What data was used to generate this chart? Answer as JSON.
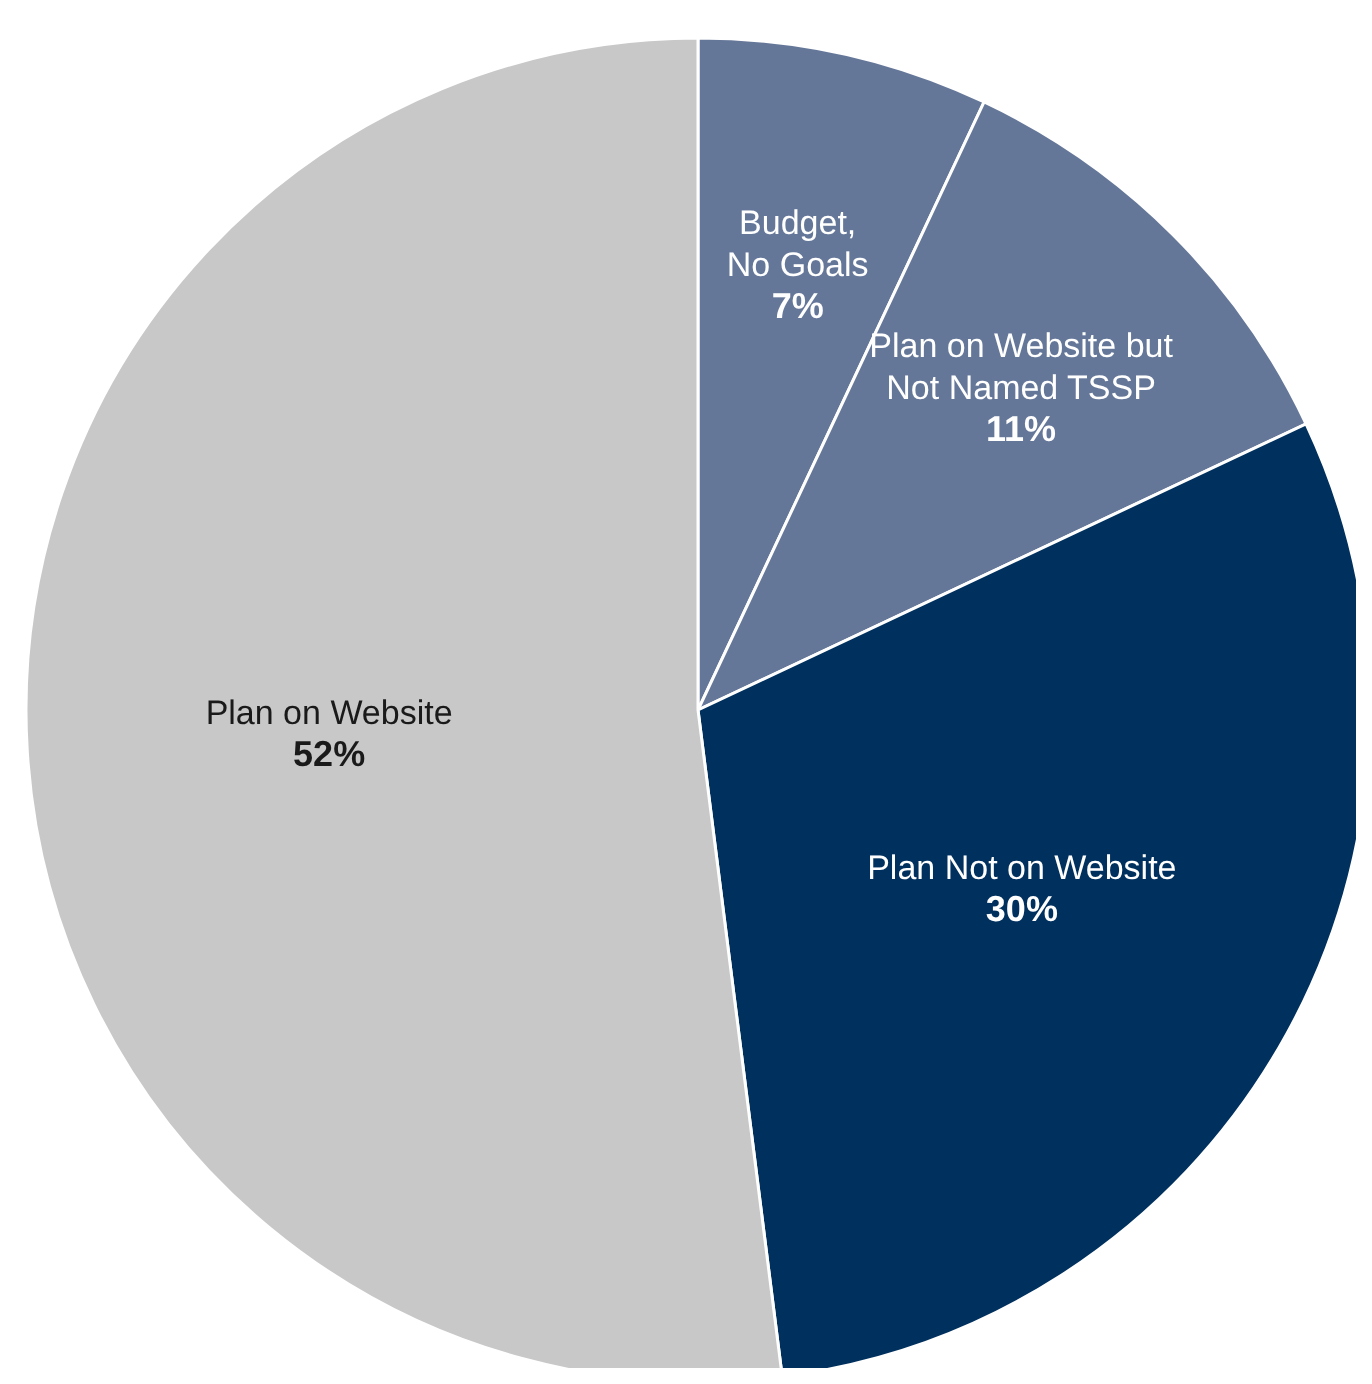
{
  "chart_data": {
    "type": "pie",
    "categories": [
      "Budget,\nNo Goals",
      "Plan on Website but\nNot Named TSSP",
      "Plan Not on Website",
      "Plan on Website"
    ],
    "values": [
      7,
      11,
      30,
      52
    ],
    "value_labels": [
      "7%",
      "11%",
      "30%",
      "52%"
    ],
    "colors": [
      "#657799",
      "#657799",
      "#00305e",
      "#c8c8c8"
    ],
    "legend": false
  }
}
